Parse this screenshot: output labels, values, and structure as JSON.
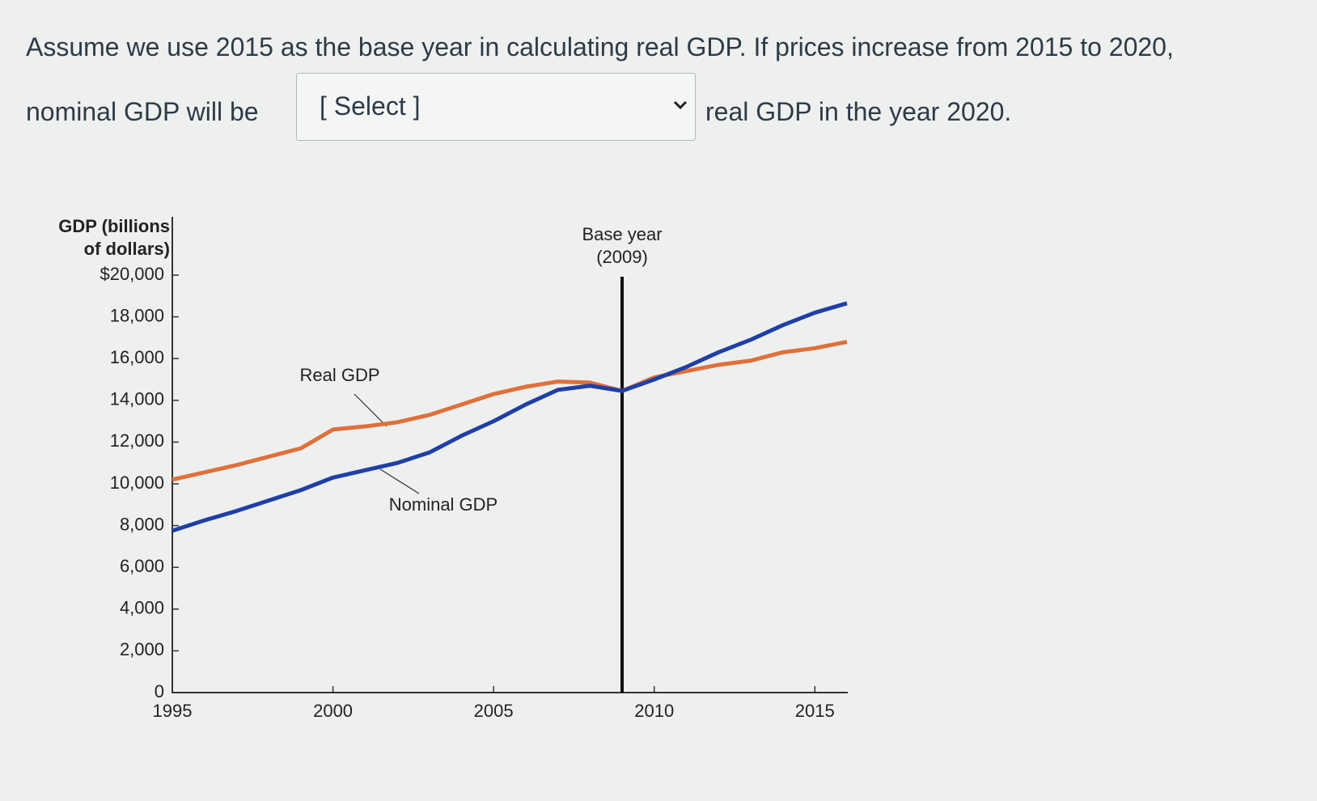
{
  "question": {
    "line1": "Assume we use 2015 as the base year in calculating real GDP.  If prices increase from 2015 to 2020,",
    "before_select": "nominal GDP will be",
    "select": "[ Select ]",
    "after_select": "real GDP in the year 2020."
  },
  "chart_data": {
    "type": "line",
    "ylabel": "GDP (billions of dollars)",
    "x": [
      1995,
      1996,
      1997,
      1998,
      1999,
      2000,
      2001,
      2002,
      2003,
      2004,
      2005,
      2006,
      2007,
      2008,
      2009,
      2010,
      2011,
      2012,
      2013,
      2014,
      2015,
      2016
    ],
    "series": [
      {
        "name": "Real GDP",
        "color": "#e0703a",
        "values": [
          10200,
          10550,
          10900,
          11300,
          11700,
          12600,
          12750,
          12950,
          13300,
          13800,
          14300,
          14650,
          14900,
          14850,
          14450,
          15100,
          15400,
          15700,
          15900,
          16300,
          16500,
          16800
        ]
      },
      {
        "name": "Nominal GDP",
        "color": "#1f3fa6",
        "values": [
          7750,
          8250,
          8700,
          9200,
          9700,
          10300,
          10650,
          11000,
          11500,
          12300,
          13000,
          13800,
          14500,
          14700,
          14450,
          15000,
          15600,
          16300,
          16900,
          17600,
          18200,
          18650
        ]
      }
    ],
    "xlim": [
      1995,
      2016
    ],
    "xticks": [
      1995,
      2000,
      2005,
      2010,
      2015
    ],
    "ylim": [
      0,
      20000
    ],
    "yticks": [
      0,
      {
        "value": 2000,
        "label": "2,000"
      },
      {
        "value": 4000,
        "label": "4,000"
      },
      {
        "value": 6000,
        "label": "6,000"
      },
      {
        "value": 8000,
        "label": "8,000"
      },
      {
        "value": 10000,
        "label": "10,000"
      },
      {
        "value": 12000,
        "label": "12,000"
      },
      {
        "value": 14000,
        "label": "14,000"
      },
      {
        "value": 16000,
        "label": "16,000"
      },
      {
        "value": 18000,
        "label": "18,000"
      },
      {
        "value": 20000,
        "label": "$20,000"
      }
    ],
    "annotation": {
      "text": "Base year (2009)",
      "x": 2009
    }
  }
}
